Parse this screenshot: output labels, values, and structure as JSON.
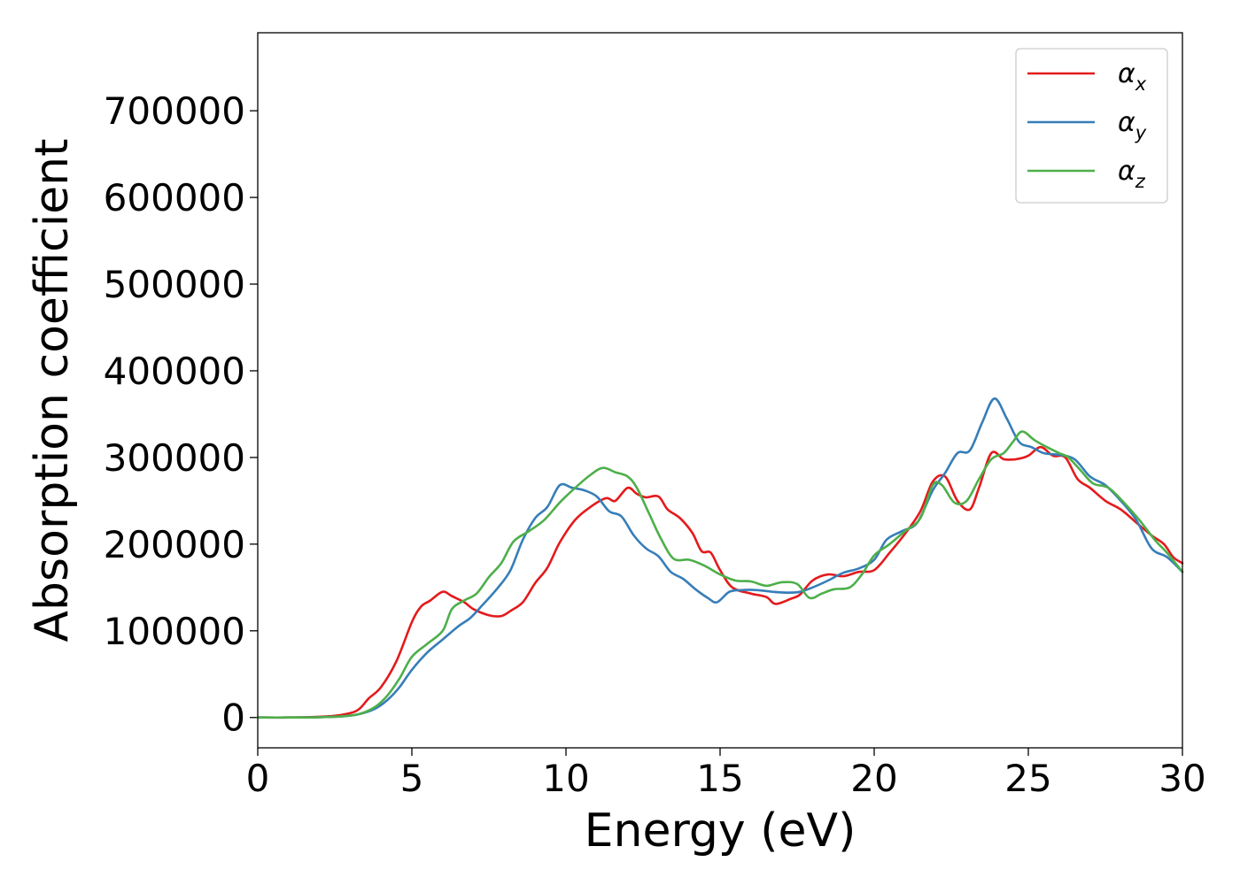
{
  "chart_data": {
    "type": "line",
    "title": "",
    "xlabel": "Energy (eV)",
    "ylabel": "Absorption coefficient",
    "xlim": [
      0,
      30
    ],
    "ylim": [
      -35000,
      790000
    ],
    "xticks": [
      0,
      5,
      10,
      15,
      20,
      25,
      30
    ],
    "yticks": [
      0,
      100000,
      200000,
      300000,
      400000,
      500000,
      600000,
      700000
    ],
    "grid": false,
    "legend_position": "top-right",
    "series": [
      {
        "name": "αx",
        "symbol": "α",
        "subscript": "x",
        "color": "#e41a1c",
        "points": [
          [
            0,
            0
          ],
          [
            1,
            0
          ],
          [
            2,
            800
          ],
          [
            2.5,
            2000
          ],
          [
            3,
            5000
          ],
          [
            3.3,
            10000
          ],
          [
            3.6,
            22000
          ],
          [
            4,
            35000
          ],
          [
            4.5,
            65000
          ],
          [
            5,
            110000
          ],
          [
            5.3,
            128000
          ],
          [
            5.6,
            135000
          ],
          [
            6,
            145000
          ],
          [
            6.3,
            140000
          ],
          [
            6.7,
            133000
          ],
          [
            7,
            125000
          ],
          [
            7.5,
            118000
          ],
          [
            7.9,
            117000
          ],
          [
            8.2,
            123000
          ],
          [
            8.6,
            133000
          ],
          [
            9,
            155000
          ],
          [
            9.4,
            173000
          ],
          [
            9.8,
            202000
          ],
          [
            10.3,
            228000
          ],
          [
            10.8,
            243000
          ],
          [
            11.3,
            253000
          ],
          [
            11.6,
            250000
          ],
          [
            12,
            265000
          ],
          [
            12.3,
            258000
          ],
          [
            12.6,
            254000
          ],
          [
            13,
            255000
          ],
          [
            13.3,
            240000
          ],
          [
            13.7,
            230000
          ],
          [
            14.1,
            213000
          ],
          [
            14.4,
            192000
          ],
          [
            14.7,
            190000
          ],
          [
            15,
            170000
          ],
          [
            15.4,
            150000
          ],
          [
            16,
            143000
          ],
          [
            16.5,
            139000
          ],
          [
            16.8,
            131000
          ],
          [
            17.3,
            137000
          ],
          [
            17.6,
            142000
          ],
          [
            18,
            158000
          ],
          [
            18.5,
            165000
          ],
          [
            19,
            163000
          ],
          [
            19.5,
            168000
          ],
          [
            20,
            170000
          ],
          [
            20.5,
            190000
          ],
          [
            21,
            212000
          ],
          [
            21.5,
            238000
          ],
          [
            21.9,
            272000
          ],
          [
            22.3,
            278000
          ],
          [
            22.7,
            250000
          ],
          [
            23.1,
            240000
          ],
          [
            23.4,
            265000
          ],
          [
            23.8,
            305000
          ],
          [
            24.2,
            298000
          ],
          [
            24.6,
            298000
          ],
          [
            25,
            302000
          ],
          [
            25.4,
            312000
          ],
          [
            25.8,
            302000
          ],
          [
            26.2,
            300000
          ],
          [
            26.6,
            275000
          ],
          [
            27,
            265000
          ],
          [
            27.5,
            250000
          ],
          [
            28,
            240000
          ],
          [
            28.5,
            225000
          ],
          [
            29,
            210000
          ],
          [
            29.4,
            200000
          ],
          [
            29.7,
            185000
          ],
          [
            30,
            178000
          ]
        ]
      },
      {
        "name": "αy",
        "symbol": "α",
        "subscript": "y",
        "color": "#377eb8",
        "points": [
          [
            0,
            0
          ],
          [
            1,
            0
          ],
          [
            2,
            300
          ],
          [
            2.8,
            1500
          ],
          [
            3.3,
            4000
          ],
          [
            3.8,
            10000
          ],
          [
            4.2,
            20000
          ],
          [
            4.6,
            35000
          ],
          [
            5,
            55000
          ],
          [
            5.5,
            75000
          ],
          [
            6,
            90000
          ],
          [
            6.5,
            105000
          ],
          [
            6.9,
            115000
          ],
          [
            7.3,
            130000
          ],
          [
            7.8,
            150000
          ],
          [
            8.2,
            170000
          ],
          [
            8.6,
            205000
          ],
          [
            9,
            230000
          ],
          [
            9.4,
            243000
          ],
          [
            9.8,
            268000
          ],
          [
            10.2,
            265000
          ],
          [
            10.6,
            262000
          ],
          [
            11,
            255000
          ],
          [
            11.4,
            238000
          ],
          [
            11.8,
            232000
          ],
          [
            12.2,
            210000
          ],
          [
            12.6,
            195000
          ],
          [
            13,
            186000
          ],
          [
            13.4,
            168000
          ],
          [
            13.8,
            160000
          ],
          [
            14.2,
            148000
          ],
          [
            14.6,
            138000
          ],
          [
            14.9,
            133000
          ],
          [
            15.3,
            145000
          ],
          [
            15.7,
            147000
          ],
          [
            16.2,
            147000
          ],
          [
            16.7,
            145000
          ],
          [
            17.2,
            144000
          ],
          [
            17.6,
            145000
          ],
          [
            18,
            150000
          ],
          [
            18.5,
            158000
          ],
          [
            19,
            167000
          ],
          [
            19.5,
            172000
          ],
          [
            20,
            182000
          ],
          [
            20.4,
            205000
          ],
          [
            20.9,
            215000
          ],
          [
            21.4,
            225000
          ],
          [
            21.9,
            262000
          ],
          [
            22.3,
            282000
          ],
          [
            22.7,
            305000
          ],
          [
            23.1,
            308000
          ],
          [
            23.5,
            340000
          ],
          [
            23.9,
            368000
          ],
          [
            24.3,
            345000
          ],
          [
            24.7,
            318000
          ],
          [
            25.1,
            312000
          ],
          [
            25.5,
            305000
          ],
          [
            26,
            303000
          ],
          [
            26.5,
            298000
          ],
          [
            27,
            278000
          ],
          [
            27.5,
            268000
          ],
          [
            28,
            250000
          ],
          [
            28.5,
            228000
          ],
          [
            29,
            195000
          ],
          [
            29.5,
            185000
          ],
          [
            30,
            168000
          ]
        ]
      },
      {
        "name": "αz",
        "symbol": "α",
        "subscript": "z",
        "color": "#4daf4a",
        "points": [
          [
            0,
            0
          ],
          [
            1,
            0
          ],
          [
            2,
            300
          ],
          [
            2.8,
            1500
          ],
          [
            3.3,
            4000
          ],
          [
            3.8,
            12000
          ],
          [
            4.2,
            25000
          ],
          [
            4.6,
            45000
          ],
          [
            5,
            70000
          ],
          [
            5.5,
            85000
          ],
          [
            6,
            100000
          ],
          [
            6.3,
            125000
          ],
          [
            6.7,
            135000
          ],
          [
            7.1,
            143000
          ],
          [
            7.5,
            162000
          ],
          [
            7.9,
            178000
          ],
          [
            8.3,
            203000
          ],
          [
            8.8,
            215000
          ],
          [
            9.3,
            228000
          ],
          [
            9.8,
            248000
          ],
          [
            10.3,
            265000
          ],
          [
            10.8,
            280000
          ],
          [
            11.2,
            288000
          ],
          [
            11.6,
            283000
          ],
          [
            12,
            278000
          ],
          [
            12.3,
            265000
          ],
          [
            12.7,
            235000
          ],
          [
            13.1,
            205000
          ],
          [
            13.5,
            183000
          ],
          [
            14,
            182000
          ],
          [
            14.5,
            175000
          ],
          [
            15,
            165000
          ],
          [
            15.5,
            158000
          ],
          [
            16,
            157000
          ],
          [
            16.5,
            152000
          ],
          [
            17,
            156000
          ],
          [
            17.5,
            154000
          ],
          [
            17.9,
            138000
          ],
          [
            18.3,
            143000
          ],
          [
            18.7,
            148000
          ],
          [
            19.2,
            150000
          ],
          [
            19.6,
            165000
          ],
          [
            20,
            187000
          ],
          [
            20.5,
            200000
          ],
          [
            21,
            215000
          ],
          [
            21.5,
            230000
          ],
          [
            21.9,
            268000
          ],
          [
            22.2,
            268000
          ],
          [
            22.6,
            248000
          ],
          [
            23,
            250000
          ],
          [
            23.4,
            275000
          ],
          [
            23.8,
            298000
          ],
          [
            24.2,
            305000
          ],
          [
            24.5,
            318000
          ],
          [
            24.8,
            330000
          ],
          [
            25.2,
            320000
          ],
          [
            25.6,
            312000
          ],
          [
            26,
            305000
          ],
          [
            26.3,
            300000
          ],
          [
            26.7,
            285000
          ],
          [
            27.1,
            270000
          ],
          [
            27.6,
            265000
          ],
          [
            28.1,
            248000
          ],
          [
            28.6,
            228000
          ],
          [
            29.1,
            205000
          ],
          [
            29.5,
            190000
          ],
          [
            30,
            168000
          ]
        ]
      }
    ]
  }
}
